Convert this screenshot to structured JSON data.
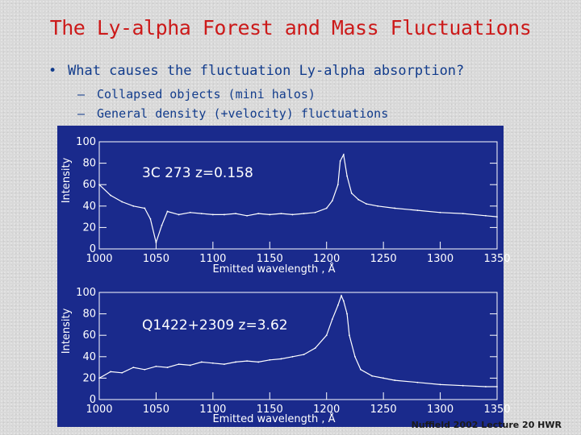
{
  "slide": {
    "title": "The Ly-alpha Forest and Mass Fluctuations",
    "bullet": "What causes the fluctuation Ly-alpha absorption?",
    "subbullets": [
      "Collapsed objects (mini halos)",
      "General density (+velocity) fluctuations"
    ],
    "footer": "Nuffield 2002 Lecture 20 HWR"
  },
  "colors": {
    "title": "#cc1a1a",
    "text": "#123c8c",
    "panel_bg": "#1a2a8c",
    "ink": "#ffffff"
  },
  "chart_data": [
    {
      "type": "line",
      "label": "3C 273  z=0.158",
      "xlabel": "Emitted wavelength , Å",
      "ylabel": "Intensity",
      "xlim": [
        1000,
        1350
      ],
      "ylim": [
        0,
        100
      ],
      "xticks": [
        1000,
        1050,
        1100,
        1150,
        1200,
        1250,
        1300,
        1350
      ],
      "yticks": [
        0,
        20,
        40,
        60,
        80,
        100
      ],
      "x": [
        1000,
        1010,
        1020,
        1030,
        1040,
        1045,
        1050,
        1055,
        1060,
        1070,
        1080,
        1090,
        1100,
        1110,
        1120,
        1130,
        1140,
        1150,
        1160,
        1170,
        1180,
        1190,
        1200,
        1205,
        1210,
        1212,
        1215,
        1218,
        1222,
        1228,
        1235,
        1245,
        1260,
        1280,
        1300,
        1320,
        1340,
        1350
      ],
      "y": [
        60,
        50,
        44,
        40,
        38,
        28,
        6,
        22,
        35,
        32,
        34,
        33,
        32,
        32,
        33,
        31,
        33,
        32,
        33,
        32,
        33,
        34,
        38,
        45,
        60,
        82,
        88,
        68,
        52,
        46,
        42,
        40,
        38,
        36,
        34,
        33,
        31,
        30
      ]
    },
    {
      "type": "line",
      "label": "Q1422+2309  z=3.62",
      "xlabel": "Emitted wavelength , Å",
      "ylabel": "Intensity",
      "xlim": [
        1000,
        1350
      ],
      "ylim": [
        0,
        100
      ],
      "xticks": [
        1000,
        1050,
        1100,
        1150,
        1200,
        1250,
        1300,
        1350
      ],
      "yticks": [
        0,
        20,
        40,
        60,
        80,
        100
      ],
      "x": [
        1000,
        1010,
        1020,
        1030,
        1040,
        1050,
        1060,
        1070,
        1080,
        1090,
        1100,
        1110,
        1120,
        1130,
        1140,
        1150,
        1160,
        1170,
        1180,
        1190,
        1200,
        1205,
        1210,
        1213,
        1215,
        1218,
        1220,
        1225,
        1230,
        1240,
        1250,
        1260,
        1280,
        1300,
        1320,
        1340,
        1350
      ],
      "y": [
        20,
        26,
        25,
        30,
        28,
        31,
        30,
        33,
        32,
        35,
        34,
        33,
        35,
        36,
        35,
        37,
        38,
        40,
        42,
        48,
        60,
        75,
        88,
        97,
        92,
        80,
        60,
        40,
        28,
        22,
        20,
        18,
        16,
        14,
        13,
        12,
        12
      ]
    }
  ]
}
